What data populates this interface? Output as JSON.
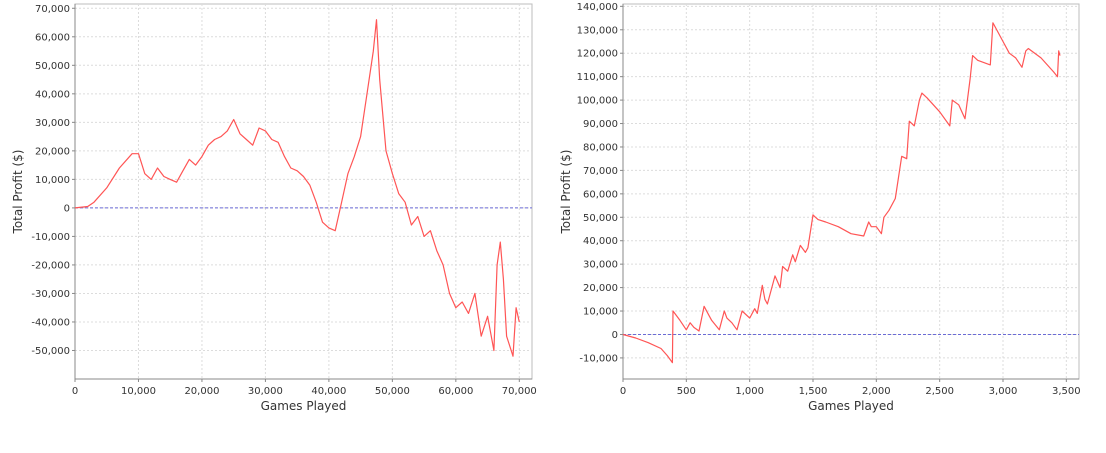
{
  "chart_data": [
    {
      "type": "line",
      "xlabel": "Games Played",
      "ylabel": "Total Profit ($)",
      "xlim": [
        0,
        72000
      ],
      "ylim": [
        -60000,
        71500
      ],
      "x_ticks": [
        0,
        10000,
        20000,
        30000,
        40000,
        50000,
        60000,
        70000
      ],
      "x_tick_labels": [
        "0",
        "10,000",
        "20,000",
        "30,000",
        "40,000",
        "50,000",
        "60,000",
        "70,000"
      ],
      "y_ticks": [
        70000,
        60000,
        50000,
        40000,
        30000,
        20000,
        10000,
        0,
        -10000,
        -20000,
        -30000,
        -40000,
        -50000
      ],
      "y_tick_labels": [
        "70,000",
        "60,000",
        "50,000",
        "40,000",
        "30,000",
        "20,000",
        "10,000",
        "0",
        "-10,000",
        "-20,000",
        "-30,000",
        "-40,000",
        "-50,000"
      ],
      "grid": true,
      "zero_line": true,
      "series_color": "#ff5555",
      "series": [
        {
          "x": [
            0,
            2000,
            3000,
            5000,
            7000,
            9000,
            10000,
            11000,
            12000,
            13000,
            14000,
            15000,
            16000,
            17000,
            18000,
            19000,
            20000,
            21000,
            22000,
            23000,
            24000,
            25000,
            26000,
            27000,
            28000,
            29000,
            30000,
            31000,
            32000,
            33000,
            34000,
            35000,
            36000,
            37000,
            38000,
            39000,
            40000,
            41000,
            42000,
            43000,
            44000,
            45000,
            46000,
            47000,
            47500,
            48000,
            49000,
            50000,
            51000,
            52000,
            53000,
            54000,
            55000,
            56000,
            57000,
            58000,
            59000,
            60000,
            61000,
            62000,
            63000,
            64000,
            65000,
            66000,
            66500,
            67000,
            67500,
            68000,
            69000,
            69500,
            70000
          ],
          "y": [
            0,
            500,
            2000,
            7000,
            14000,
            19000,
            19000,
            12000,
            10000,
            14000,
            11000,
            10000,
            9000,
            13000,
            17000,
            15000,
            18000,
            22000,
            24000,
            25000,
            27000,
            31000,
            26000,
            24000,
            22000,
            28000,
            27000,
            24000,
            23000,
            18000,
            14000,
            13000,
            11000,
            8000,
            2000,
            -5000,
            -7000,
            -8000,
            2000,
            12000,
            18000,
            25000,
            40000,
            55000,
            66000,
            45000,
            20000,
            12000,
            5000,
            2000,
            -6000,
            -3000,
            -10000,
            -8000,
            -15000,
            -20000,
            -30000,
            -35000,
            -33000,
            -37000,
            -30000,
            -45000,
            -38000,
            -50000,
            -20000,
            -12000,
            -25000,
            -45000,
            -52000,
            -35000,
            -40000
          ]
        }
      ]
    },
    {
      "type": "line",
      "xlabel": "Games Played",
      "ylabel": "Total Profit ($)",
      "xlim": [
        0,
        3600
      ],
      "ylim": [
        -19000,
        141000
      ],
      "x_ticks": [
        0,
        500,
        1000,
        1500,
        2000,
        2500,
        3000,
        3500
      ],
      "x_tick_labels": [
        "0",
        "500",
        "1,000",
        "1,500",
        "2,000",
        "2,500",
        "3,000",
        "3,500"
      ],
      "y_ticks": [
        140000,
        130000,
        120000,
        110000,
        100000,
        90000,
        80000,
        70000,
        60000,
        50000,
        40000,
        30000,
        20000,
        10000,
        0,
        -10000
      ],
      "y_tick_labels": [
        "140,000",
        "130,000",
        "120,000",
        "110,000",
        "100,000",
        "90,000",
        "80,000",
        "70,000",
        "60,000",
        "50,000",
        "40,000",
        "30,000",
        "20,000",
        "10,000",
        "0",
        "-10,000"
      ],
      "grid": true,
      "zero_line": true,
      "series_color": "#ff5555",
      "series": [
        {
          "x": [
            0,
            100,
            200,
            300,
            350,
            390,
            395,
            450,
            500,
            530,
            560,
            600,
            640,
            680,
            700,
            760,
            800,
            820,
            860,
            900,
            940,
            1000,
            1040,
            1060,
            1100,
            1120,
            1140,
            1200,
            1240,
            1260,
            1300,
            1340,
            1360,
            1400,
            1440,
            1460,
            1500,
            1520,
            1540,
            1600,
            1700,
            1800,
            1900,
            1940,
            1960,
            2000,
            2040,
            2060,
            2100,
            2150,
            2200,
            2240,
            2260,
            2300,
            2340,
            2360,
            2400,
            2500,
            2580,
            2600,
            2650,
            2700,
            2740,
            2760,
            2800,
            2900,
            2920,
            2940,
            3000,
            3050,
            3100,
            3150,
            3180,
            3200,
            3300,
            3400,
            3430,
            3440,
            3450
          ],
          "y": [
            0,
            -1500,
            -3500,
            -6000,
            -9000,
            -12000,
            10000,
            6000,
            2000,
            5000,
            3000,
            1500,
            12000,
            8000,
            6000,
            2000,
            10000,
            7000,
            5000,
            2000,
            10000,
            7000,
            11000,
            9000,
            21000,
            15000,
            13000,
            25000,
            20000,
            29000,
            27000,
            34000,
            31000,
            38000,
            35000,
            37000,
            51000,
            50000,
            49000,
            48000,
            46000,
            43000,
            42000,
            48000,
            46000,
            46000,
            43000,
            50000,
            53000,
            58000,
            76000,
            75000,
            91000,
            89000,
            100000,
            103000,
            101000,
            95000,
            89000,
            100000,
            98000,
            92000,
            109000,
            119000,
            117000,
            115000,
            133000,
            131000,
            125000,
            120000,
            118000,
            114000,
            121000,
            122000,
            118000,
            112000,
            110000,
            121000,
            119000
          ]
        }
      ]
    }
  ]
}
